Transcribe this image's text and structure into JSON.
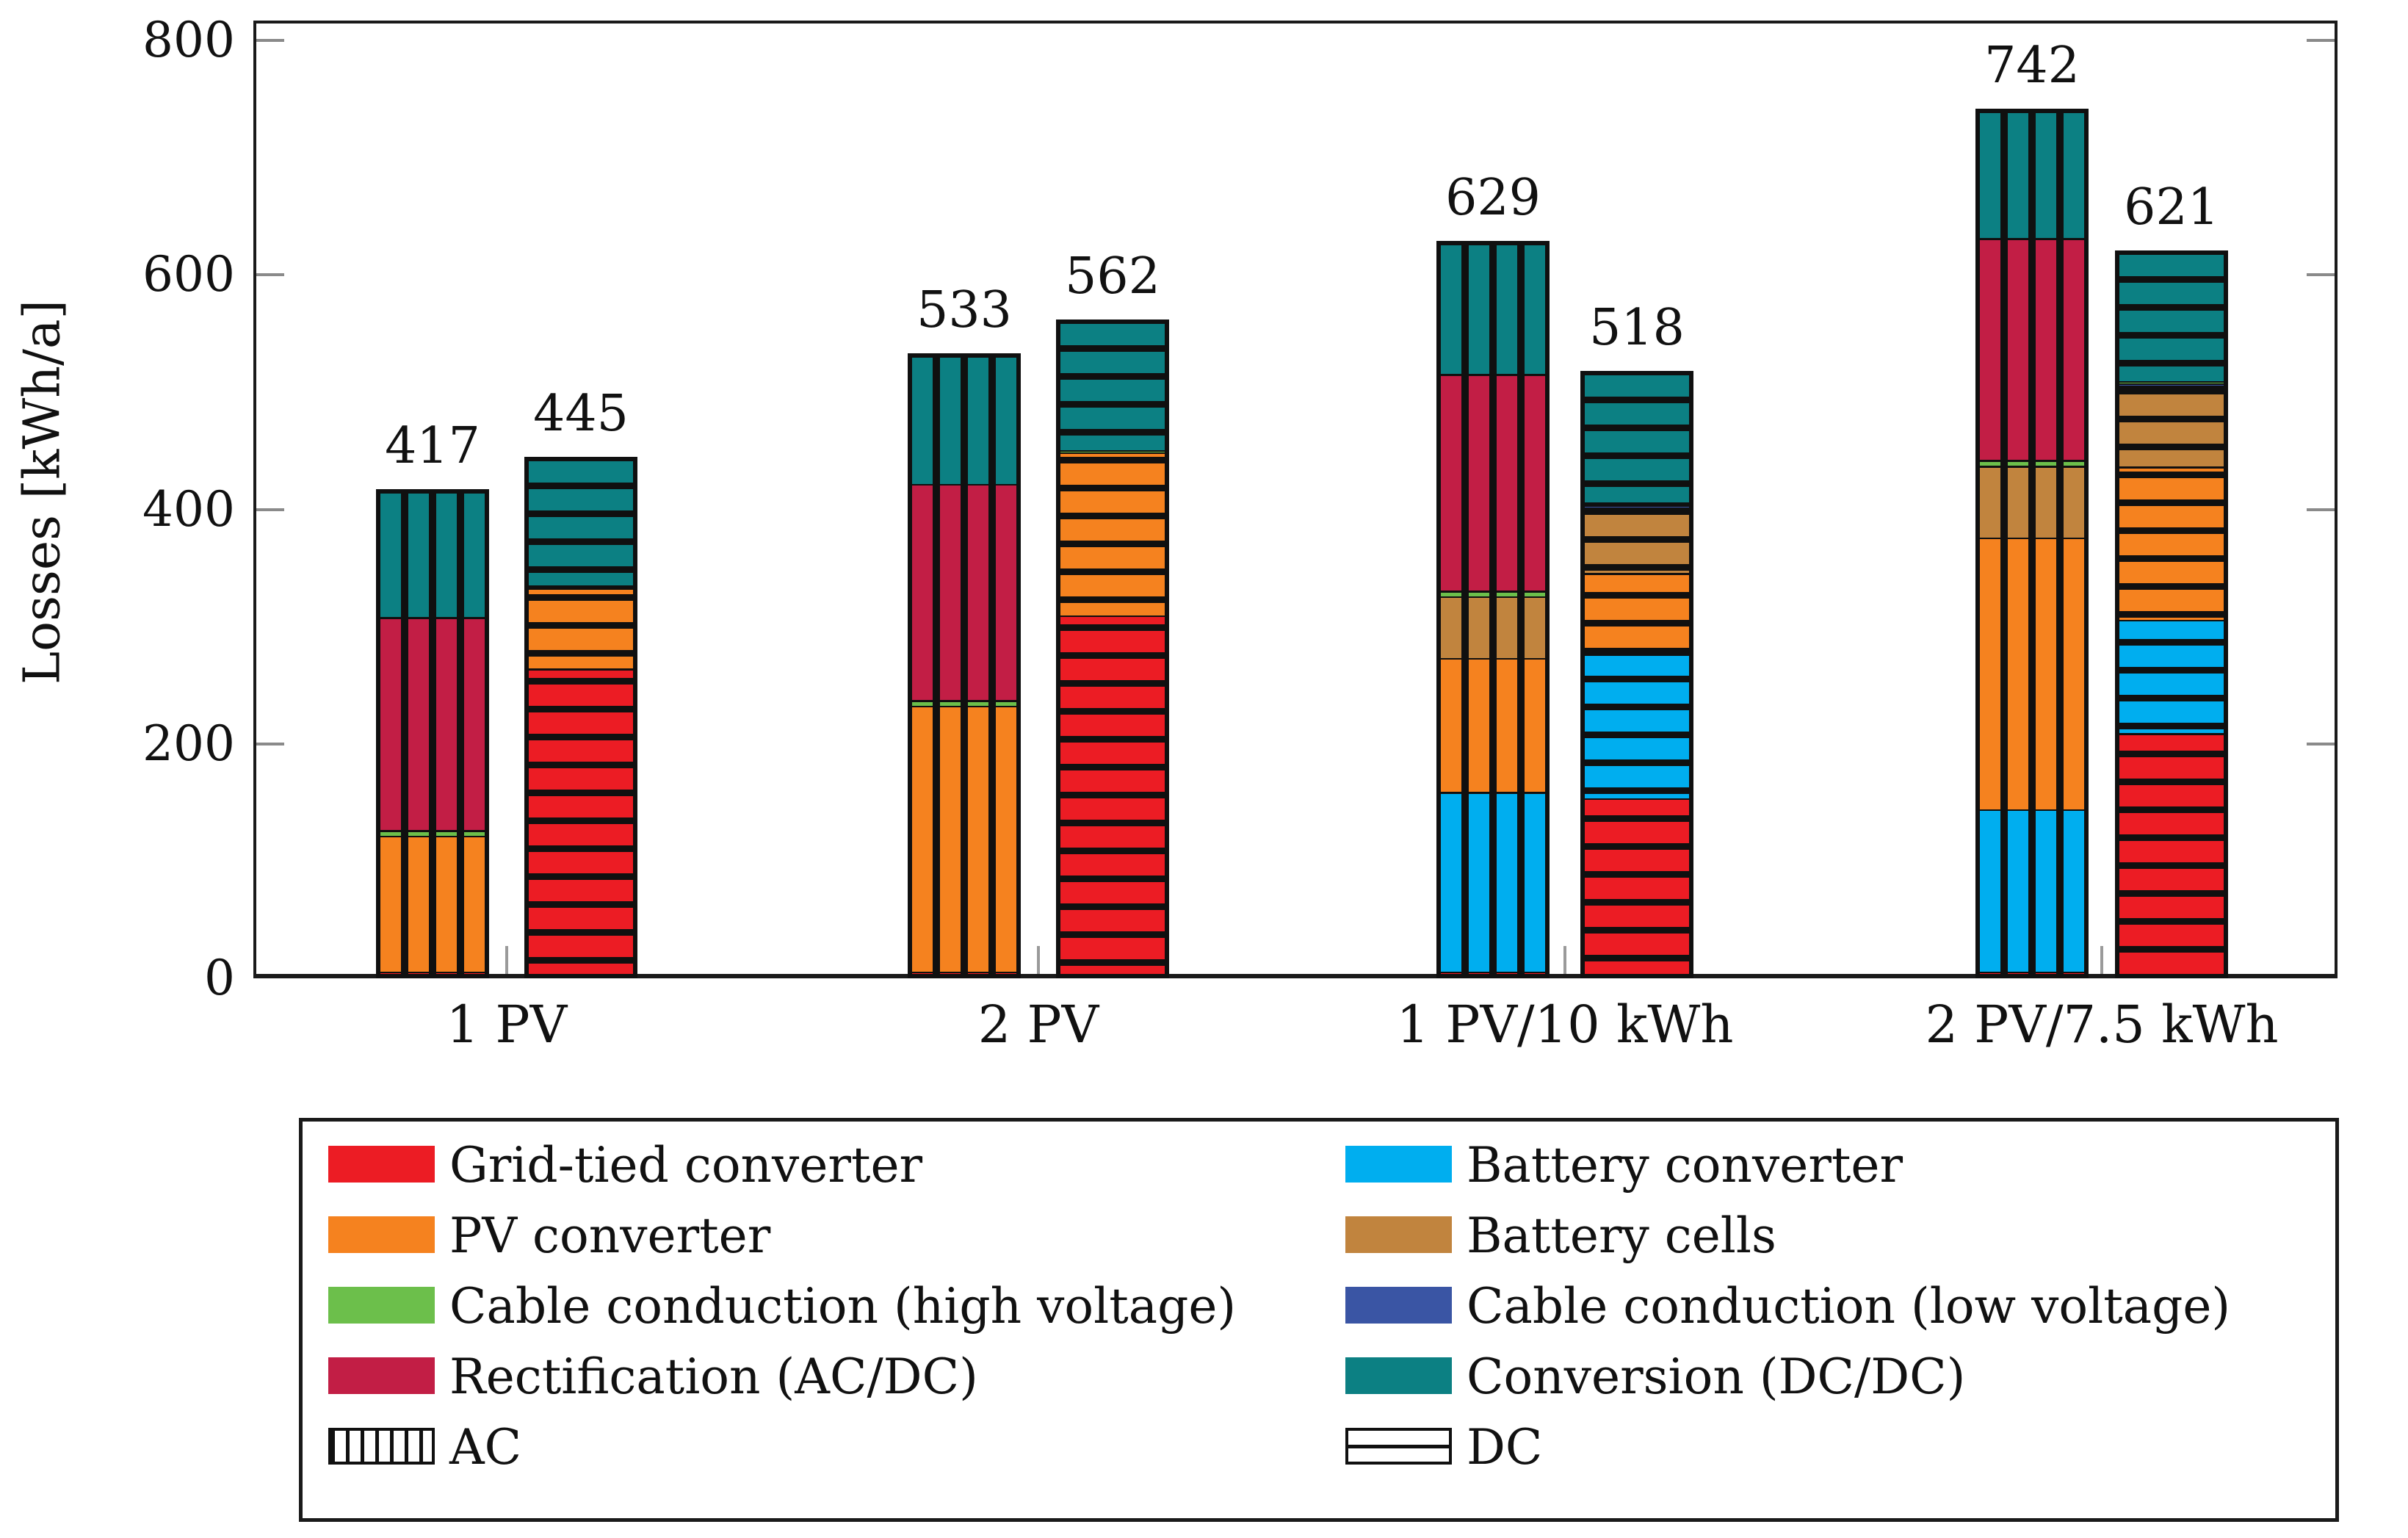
{
  "y_axis": {
    "label": "Losses [kWh/a]",
    "ticks": [
      "0",
      "200",
      "400",
      "600",
      "800"
    ]
  },
  "colors": {
    "grid_tied_converter": "#EC1C24",
    "pv_converter": "#F5821F",
    "cable_high_voltage": "#6CBF4B",
    "rectification": "#C21E45",
    "battery_converter": "#00AEEF",
    "battery_cells": "#C1843E",
    "cable_low_voltage": "#3A55A4",
    "conversion_dcdc": "#0C8083",
    "hatch_black": "#101010"
  },
  "chart_data": {
    "type": "bar",
    "stacked": true,
    "title": "",
    "xlabel": "",
    "ylabel": "Losses [kWh/a]",
    "ylim": [
      0,
      800
    ],
    "grid": false,
    "legend_position": "bottom",
    "categories": [
      "1 PV",
      "2 PV",
      "1 PV/10 kWh",
      "2 PV/7.5 kWh"
    ],
    "hatch_meaning": {
      "vertical": "AC",
      "horizontal": "DC"
    },
    "bars": [
      {
        "category_index": 0,
        "coupling": "AC",
        "hatch": "vertical",
        "total": 417,
        "segments": [
          {
            "name": "Grid-tied converter",
            "color_key": "grid_tied_converter",
            "value": 2
          },
          {
            "name": "PV converter",
            "color_key": "pv_converter",
            "value": 118
          },
          {
            "name": "Cable conduction (high voltage)",
            "color_key": "cable_high_voltage",
            "value": 5
          },
          {
            "name": "Rectification (AC/DC)",
            "color_key": "rectification",
            "value": 185
          },
          {
            "name": "Conversion (DC/DC)",
            "color_key": "conversion_dcdc",
            "value": 107
          }
        ]
      },
      {
        "category_index": 0,
        "coupling": "DC",
        "hatch": "horizontal",
        "total": 445,
        "segments": [
          {
            "name": "Grid-tied converter",
            "color_key": "grid_tied_converter",
            "value": 265
          },
          {
            "name": "PV converter",
            "color_key": "pv_converter",
            "value": 70
          },
          {
            "name": "Cable conduction (high voltage)",
            "color_key": "cable_high_voltage",
            "value": 2
          },
          {
            "name": "Conversion (DC/DC)",
            "color_key": "conversion_dcdc",
            "value": 108
          }
        ]
      },
      {
        "category_index": 1,
        "coupling": "AC",
        "hatch": "vertical",
        "total": 533,
        "segments": [
          {
            "name": "Grid-tied converter",
            "color_key": "grid_tied_converter",
            "value": 2
          },
          {
            "name": "PV converter",
            "color_key": "pv_converter",
            "value": 230
          },
          {
            "name": "Cable conduction (high voltage)",
            "color_key": "cable_high_voltage",
            "value": 5
          },
          {
            "name": "Rectification (AC/DC)",
            "color_key": "rectification",
            "value": 187
          },
          {
            "name": "Conversion (DC/DC)",
            "color_key": "conversion_dcdc",
            "value": 109
          }
        ]
      },
      {
        "category_index": 1,
        "coupling": "DC",
        "hatch": "horizontal",
        "total": 562,
        "segments": [
          {
            "name": "Grid-tied converter",
            "color_key": "grid_tied_converter",
            "value": 310
          },
          {
            "name": "PV converter",
            "color_key": "pv_converter",
            "value": 141
          },
          {
            "name": "Cable conduction (high voltage)",
            "color_key": "cable_high_voltage",
            "value": 2
          },
          {
            "name": "Conversion (DC/DC)",
            "color_key": "conversion_dcdc",
            "value": 109
          }
        ]
      },
      {
        "category_index": 2,
        "coupling": "AC",
        "hatch": "vertical",
        "total": 629,
        "segments": [
          {
            "name": "Grid-tied converter",
            "color_key": "grid_tied_converter",
            "value": 2
          },
          {
            "name": "Battery converter",
            "color_key": "battery_converter",
            "value": 155
          },
          {
            "name": "PV converter",
            "color_key": "pv_converter",
            "value": 116
          },
          {
            "name": "Battery cells",
            "color_key": "battery_cells",
            "value": 53
          },
          {
            "name": "Cable conduction (high voltage)",
            "color_key": "cable_high_voltage",
            "value": 5
          },
          {
            "name": "Rectification (AC/DC)",
            "color_key": "rectification",
            "value": 187
          },
          {
            "name": "Conversion (DC/DC)",
            "color_key": "conversion_dcdc",
            "value": 111
          }
        ]
      },
      {
        "category_index": 2,
        "coupling": "DC",
        "hatch": "horizontal",
        "total": 518,
        "segments": [
          {
            "name": "Grid-tied converter",
            "color_key": "grid_tied_converter",
            "value": 152
          },
          {
            "name": "Battery converter",
            "color_key": "battery_converter",
            "value": 125
          },
          {
            "name": "PV converter",
            "color_key": "pv_converter",
            "value": 70
          },
          {
            "name": "Battery cells",
            "color_key": "battery_cells",
            "value": 57
          },
          {
            "name": "Cable conduction (low voltage)",
            "color_key": "cable_low_voltage",
            "value": 2
          },
          {
            "name": "Cable conduction (high voltage)",
            "color_key": "cable_high_voltage",
            "value": 2
          },
          {
            "name": "Conversion (DC/DC)",
            "color_key": "conversion_dcdc",
            "value": 110
          }
        ]
      },
      {
        "category_index": 3,
        "coupling": "AC",
        "hatch": "vertical",
        "total": 742,
        "segments": [
          {
            "name": "Grid-tied converter",
            "color_key": "grid_tied_converter",
            "value": 2
          },
          {
            "name": "Battery converter",
            "color_key": "battery_converter",
            "value": 140
          },
          {
            "name": "PV converter",
            "color_key": "pv_converter",
            "value": 234
          },
          {
            "name": "Battery cells",
            "color_key": "battery_cells",
            "value": 62
          },
          {
            "name": "Cable conduction (high voltage)",
            "color_key": "cable_high_voltage",
            "value": 5
          },
          {
            "name": "Rectification (AC/DC)",
            "color_key": "rectification",
            "value": 191
          },
          {
            "name": "Conversion (DC/DC)",
            "color_key": "conversion_dcdc",
            "value": 108
          }
        ]
      },
      {
        "category_index": 3,
        "coupling": "DC",
        "hatch": "horizontal",
        "total": 621,
        "segments": [
          {
            "name": "Grid-tied converter",
            "color_key": "grid_tied_converter",
            "value": 208
          },
          {
            "name": "Battery converter",
            "color_key": "battery_converter",
            "value": 98
          },
          {
            "name": "PV converter",
            "color_key": "pv_converter",
            "value": 132
          },
          {
            "name": "Battery cells",
            "color_key": "battery_cells",
            "value": 70
          },
          {
            "name": "Cable conduction (low voltage)",
            "color_key": "cable_low_voltage",
            "value": 2
          },
          {
            "name": "Cable conduction (high voltage)",
            "color_key": "cable_high_voltage",
            "value": 2
          },
          {
            "name": "Conversion (DC/DC)",
            "color_key": "conversion_dcdc",
            "value": 109
          }
        ]
      }
    ]
  },
  "legend": {
    "left": [
      {
        "label": "Grid-tied converter",
        "swatch": "color",
        "color_key": "grid_tied_converter"
      },
      {
        "label": "PV converter",
        "swatch": "color",
        "color_key": "pv_converter"
      },
      {
        "label": "Cable conduction (high voltage)",
        "swatch": "color",
        "color_key": "cable_high_voltage"
      },
      {
        "label": "Rectification (AC/DC)",
        "swatch": "color",
        "color_key": "rectification"
      },
      {
        "label": "AC",
        "swatch": "hatch-vertical"
      }
    ],
    "right": [
      {
        "label": "Battery converter",
        "swatch": "color",
        "color_key": "battery_converter"
      },
      {
        "label": "Battery cells",
        "swatch": "color",
        "color_key": "battery_cells"
      },
      {
        "label": "Cable conduction (low voltage)",
        "swatch": "color",
        "color_key": "cable_low_voltage"
      },
      {
        "label": "Conversion (DC/DC)",
        "swatch": "color",
        "color_key": "conversion_dcdc"
      },
      {
        "label": "DC",
        "swatch": "hatch-horizontal"
      }
    ]
  }
}
